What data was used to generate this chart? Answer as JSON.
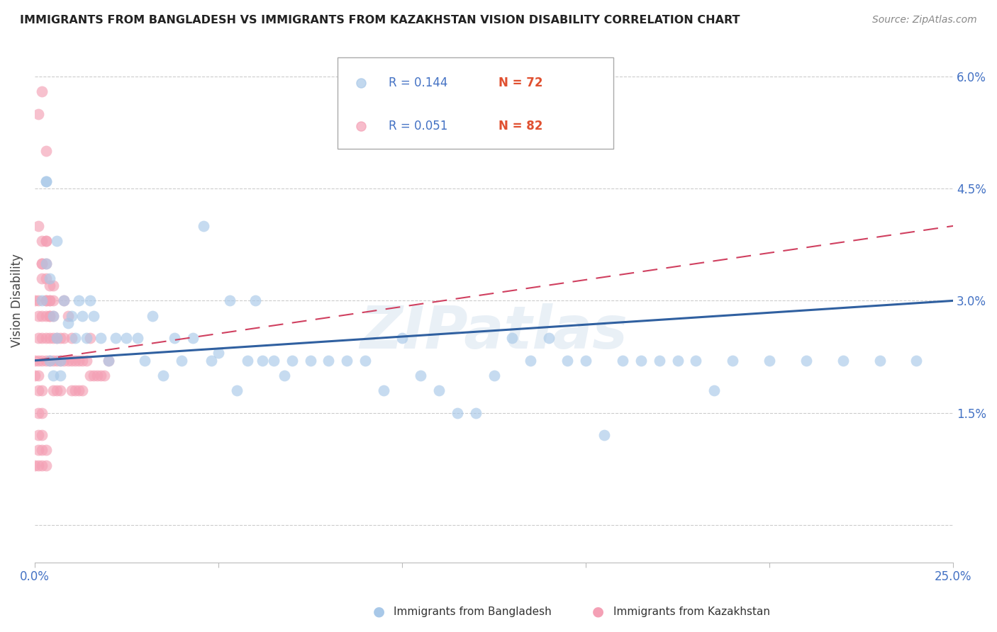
{
  "title": "IMMIGRANTS FROM BANGLADESH VS IMMIGRANTS FROM KAZAKHSTAN VISION DISABILITY CORRELATION CHART",
  "source": "Source: ZipAtlas.com",
  "ylabel": "Vision Disability",
  "yticks": [
    0.0,
    0.015,
    0.03,
    0.045,
    0.06
  ],
  "ytick_labels": [
    "",
    "1.5%",
    "3.0%",
    "4.5%",
    "6.0%"
  ],
  "xlim": [
    0.0,
    0.25
  ],
  "ylim": [
    -0.005,
    0.065
  ],
  "color_blue": "#a8c8e8",
  "color_pink": "#f4a0b5",
  "color_line_blue": "#3060a0",
  "color_line_pink": "#d04060",
  "watermark": "ZIPatlas",
  "bangladesh_x": [
    0.002,
    0.003,
    0.003,
    0.004,
    0.005,
    0.006,
    0.007,
    0.008,
    0.009,
    0.01,
    0.011,
    0.012,
    0.013,
    0.014,
    0.015,
    0.016,
    0.018,
    0.02,
    0.022,
    0.025,
    0.028,
    0.03,
    0.032,
    0.035,
    0.038,
    0.04,
    0.043,
    0.046,
    0.048,
    0.05,
    0.053,
    0.055,
    0.058,
    0.06,
    0.062,
    0.065,
    0.068,
    0.07,
    0.075,
    0.08,
    0.085,
    0.09,
    0.095,
    0.1,
    0.105,
    0.11,
    0.115,
    0.12,
    0.125,
    0.13,
    0.135,
    0.14,
    0.145,
    0.15,
    0.155,
    0.16,
    0.165,
    0.17,
    0.175,
    0.18,
    0.185,
    0.19,
    0.2,
    0.21,
    0.22,
    0.23,
    0.24,
    0.003,
    0.004,
    0.005,
    0.006,
    0.007
  ],
  "bangladesh_y": [
    0.03,
    0.046,
    0.046,
    0.033,
    0.028,
    0.025,
    0.022,
    0.03,
    0.027,
    0.028,
    0.025,
    0.03,
    0.028,
    0.025,
    0.03,
    0.028,
    0.025,
    0.022,
    0.025,
    0.025,
    0.025,
    0.022,
    0.028,
    0.02,
    0.025,
    0.022,
    0.025,
    0.04,
    0.022,
    0.023,
    0.03,
    0.018,
    0.022,
    0.03,
    0.022,
    0.022,
    0.02,
    0.022,
    0.022,
    0.022,
    0.022,
    0.022,
    0.018,
    0.025,
    0.02,
    0.018,
    0.015,
    0.015,
    0.02,
    0.025,
    0.022,
    0.025,
    0.022,
    0.022,
    0.012,
    0.022,
    0.022,
    0.022,
    0.022,
    0.022,
    0.018,
    0.022,
    0.022,
    0.022,
    0.022,
    0.022,
    0.022,
    0.035,
    0.022,
    0.02,
    0.038,
    0.02
  ],
  "kazakhstan_x": [
    0.0,
    0.0,
    0.001,
    0.001,
    0.001,
    0.001,
    0.002,
    0.002,
    0.002,
    0.002,
    0.003,
    0.003,
    0.003,
    0.003,
    0.004,
    0.004,
    0.004,
    0.004,
    0.005,
    0.005,
    0.005,
    0.005,
    0.006,
    0.006,
    0.006,
    0.007,
    0.007,
    0.007,
    0.008,
    0.008,
    0.008,
    0.009,
    0.009,
    0.01,
    0.01,
    0.01,
    0.011,
    0.011,
    0.012,
    0.012,
    0.013,
    0.013,
    0.014,
    0.015,
    0.015,
    0.016,
    0.017,
    0.018,
    0.019,
    0.02,
    0.001,
    0.002,
    0.003,
    0.002,
    0.003,
    0.001,
    0.001,
    0.002,
    0.002,
    0.001,
    0.0,
    0.001,
    0.002,
    0.003,
    0.0,
    0.001,
    0.001,
    0.002,
    0.003,
    0.002,
    0.003,
    0.004,
    0.005,
    0.003,
    0.004,
    0.002,
    0.003,
    0.001,
    0.004,
    0.005,
    0.002,
    0.003
  ],
  "kazakhstan_y": [
    0.022,
    0.02,
    0.025,
    0.022,
    0.02,
    0.018,
    0.028,
    0.025,
    0.022,
    0.018,
    0.03,
    0.028,
    0.025,
    0.022,
    0.03,
    0.028,
    0.025,
    0.022,
    0.028,
    0.025,
    0.022,
    0.018,
    0.025,
    0.022,
    0.018,
    0.025,
    0.022,
    0.018,
    0.03,
    0.025,
    0.022,
    0.028,
    0.022,
    0.025,
    0.022,
    0.018,
    0.022,
    0.018,
    0.022,
    0.018,
    0.022,
    0.018,
    0.022,
    0.025,
    0.02,
    0.02,
    0.02,
    0.02,
    0.02,
    0.022,
    0.055,
    0.058,
    0.05,
    0.035,
    0.038,
    0.015,
    0.012,
    0.015,
    0.012,
    0.01,
    0.008,
    0.008,
    0.008,
    0.008,
    0.03,
    0.03,
    0.028,
    0.033,
    0.033,
    0.035,
    0.035,
    0.032,
    0.032,
    0.03,
    0.03,
    0.038,
    0.038,
    0.04,
    0.028,
    0.03,
    0.01,
    0.01
  ],
  "line_blue_x0": 0.0,
  "line_blue_y0": 0.022,
  "line_blue_x1": 0.25,
  "line_blue_y1": 0.03,
  "line_pink_x0": 0.0,
  "line_pink_y0": 0.022,
  "line_pink_x1": 0.25,
  "line_pink_y1": 0.04
}
